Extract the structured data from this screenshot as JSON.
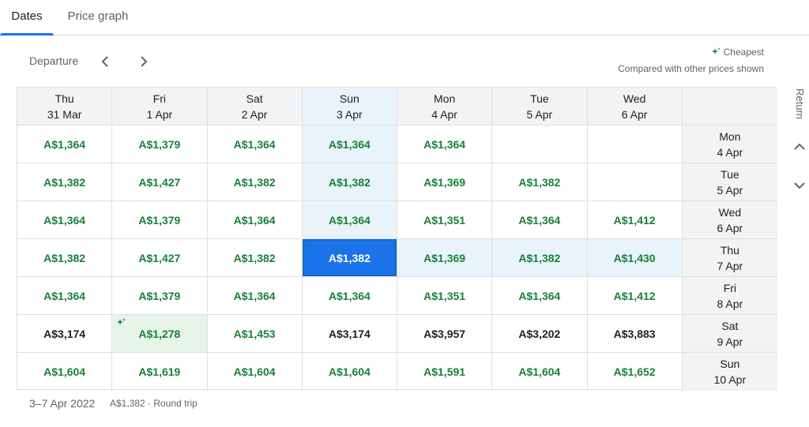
{
  "tabs": [
    {
      "label": "Dates",
      "active": true
    },
    {
      "label": "Price graph",
      "active": false
    }
  ],
  "departure": {
    "label": "Departure",
    "prev_icon": "chevron-left-icon",
    "next_icon": "chevron-right-icon"
  },
  "legend": {
    "cheapest_label": "Cheapest",
    "icon": "sparkle-icon",
    "note": "Compared with other prices shown"
  },
  "return_label": "Return",
  "grid": {
    "columns": [
      {
        "day": "Thu",
        "date": "31 Mar",
        "selected": false
      },
      {
        "day": "Fri",
        "date": "1 Apr",
        "selected": false
      },
      {
        "day": "Sat",
        "date": "2 Apr",
        "selected": false
      },
      {
        "day": "Sun",
        "date": "3 Apr",
        "selected": true
      },
      {
        "day": "Mon",
        "date": "4 Apr",
        "selected": false
      },
      {
        "day": "Tue",
        "date": "5 Apr",
        "selected": false
      },
      {
        "day": "Wed",
        "date": "6 Apr",
        "selected": false
      }
    ],
    "rows": [
      {
        "day": "Mon",
        "date": "4 Apr",
        "prices": [
          "A$1,364",
          "A$1,379",
          "A$1,364",
          "A$1,364",
          "A$1,364",
          "",
          ""
        ]
      },
      {
        "day": "Tue",
        "date": "5 Apr",
        "prices": [
          "A$1,382",
          "A$1,427",
          "A$1,382",
          "A$1,382",
          "A$1,369",
          "A$1,382",
          ""
        ]
      },
      {
        "day": "Wed",
        "date": "6 Apr",
        "prices": [
          "A$1,364",
          "A$1,379",
          "A$1,364",
          "A$1,364",
          "A$1,351",
          "A$1,364",
          "A$1,412"
        ]
      },
      {
        "day": "Thu",
        "date": "7 Apr",
        "prices": [
          "A$1,382",
          "A$1,427",
          "A$1,382",
          "A$1,382",
          "A$1,369",
          "A$1,382",
          "A$1,430"
        ]
      },
      {
        "day": "Fri",
        "date": "8 Apr",
        "prices": [
          "A$1,364",
          "A$1,379",
          "A$1,364",
          "A$1,364",
          "A$1,351",
          "A$1,364",
          "A$1,412"
        ]
      },
      {
        "day": "Sat",
        "date": "9 Apr",
        "prices": [
          "A$3,174",
          "A$1,278",
          "A$1,453",
          "A$3,174",
          "A$3,957",
          "A$3,202",
          "A$3,883"
        ]
      },
      {
        "day": "Sun",
        "date": "10 Apr",
        "prices": [
          "A$1,604",
          "A$1,619",
          "A$1,604",
          "A$1,604",
          "A$1,591",
          "A$1,604",
          "A$1,652"
        ]
      }
    ],
    "selected_row": 3,
    "selected_col": 3,
    "cheapest": {
      "row": 5,
      "col": 1
    },
    "black_prices": [
      [
        5,
        0
      ],
      [
        5,
        3
      ],
      [
        5,
        4
      ],
      [
        5,
        5
      ],
      [
        5,
        6
      ]
    ]
  },
  "colors": {
    "accent": "#1a73e8",
    "price_green": "#188038",
    "highlight": "#e8f4fa",
    "cheapest_bg": "#e6f4ea"
  },
  "footer": {
    "dates": "3–7 Apr 2022",
    "summary": "A$1,382 · Round trip"
  }
}
